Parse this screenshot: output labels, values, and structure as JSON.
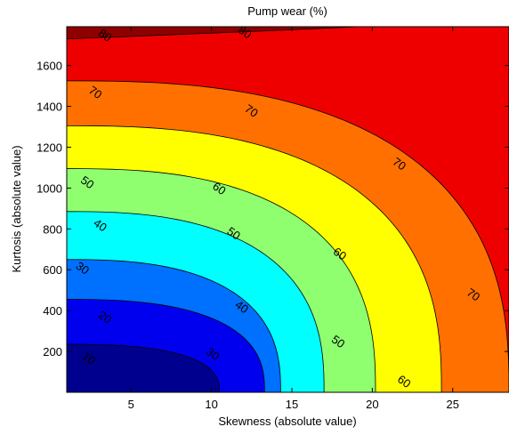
{
  "chart_data": {
    "type": "contour",
    "title": "Pump wear (%)",
    "xlabel": "Skewness (absolute value)",
    "ylabel": "Kurtosis (absolute value)",
    "xlim": [
      1,
      28.5
    ],
    "ylim": [
      0,
      1790
    ],
    "xticks": [
      "5",
      "10",
      "15",
      "20",
      "25"
    ],
    "yticks": [
      "200",
      "400",
      "600",
      "800",
      "1000",
      "1200",
      "1400",
      "1600"
    ],
    "levels": [
      10,
      20,
      30,
      40,
      50,
      60,
      70,
      80
    ],
    "band_colors": [
      "#00008F",
      "#0000EF",
      "#0070FF",
      "#00FFFF",
      "#8FFF70",
      "#FFFF00",
      "#FF7000",
      "#EF0000",
      "#8F0000"
    ],
    "contours": [
      {
        "level": 10,
        "x0": 10.5,
        "y0": 235
      },
      {
        "level": 20,
        "x0": 13.3,
        "y0": 455
      },
      {
        "level": 30,
        "x0": 14.3,
        "y0": 650
      },
      {
        "level": 40,
        "x0": 17.0,
        "y0": 885
      },
      {
        "level": 50,
        "x0": 20.2,
        "y0": 1095
      },
      {
        "level": 60,
        "x0": 24.3,
        "y0": 1305
      },
      {
        "level": 70,
        "x0": 28.5,
        "y0": 1525
      }
    ],
    "labels": [
      {
        "text": "10",
        "x": 2.4,
        "y": 168
      },
      {
        "text": "20",
        "x": 3.4,
        "y": 370
      },
      {
        "text": "30",
        "x": 2.0,
        "y": 610
      },
      {
        "text": "30",
        "x": 10.1,
        "y": 190
      },
      {
        "text": "40",
        "x": 3.1,
        "y": 820
      },
      {
        "text": "40",
        "x": 11.9,
        "y": 420
      },
      {
        "text": "50",
        "x": 2.3,
        "y": 1030
      },
      {
        "text": "50",
        "x": 11.4,
        "y": 780
      },
      {
        "text": "50",
        "x": 17.9,
        "y": 250
      },
      {
        "text": "60",
        "x": 10.5,
        "y": 1000
      },
      {
        "text": "60",
        "x": 18.0,
        "y": 680
      },
      {
        "text": "60",
        "x": 22.0,
        "y": 55
      },
      {
        "text": "70",
        "x": 2.8,
        "y": 1470
      },
      {
        "text": "70",
        "x": 12.5,
        "y": 1380
      },
      {
        "text": "70",
        "x": 21.7,
        "y": 1120
      },
      {
        "text": "70",
        "x": 26.3,
        "y": 480
      },
      {
        "text": "80",
        "x": 3.4,
        "y": 1750
      },
      {
        "text": "80",
        "x": 12.1,
        "y": 1765
      }
    ]
  }
}
